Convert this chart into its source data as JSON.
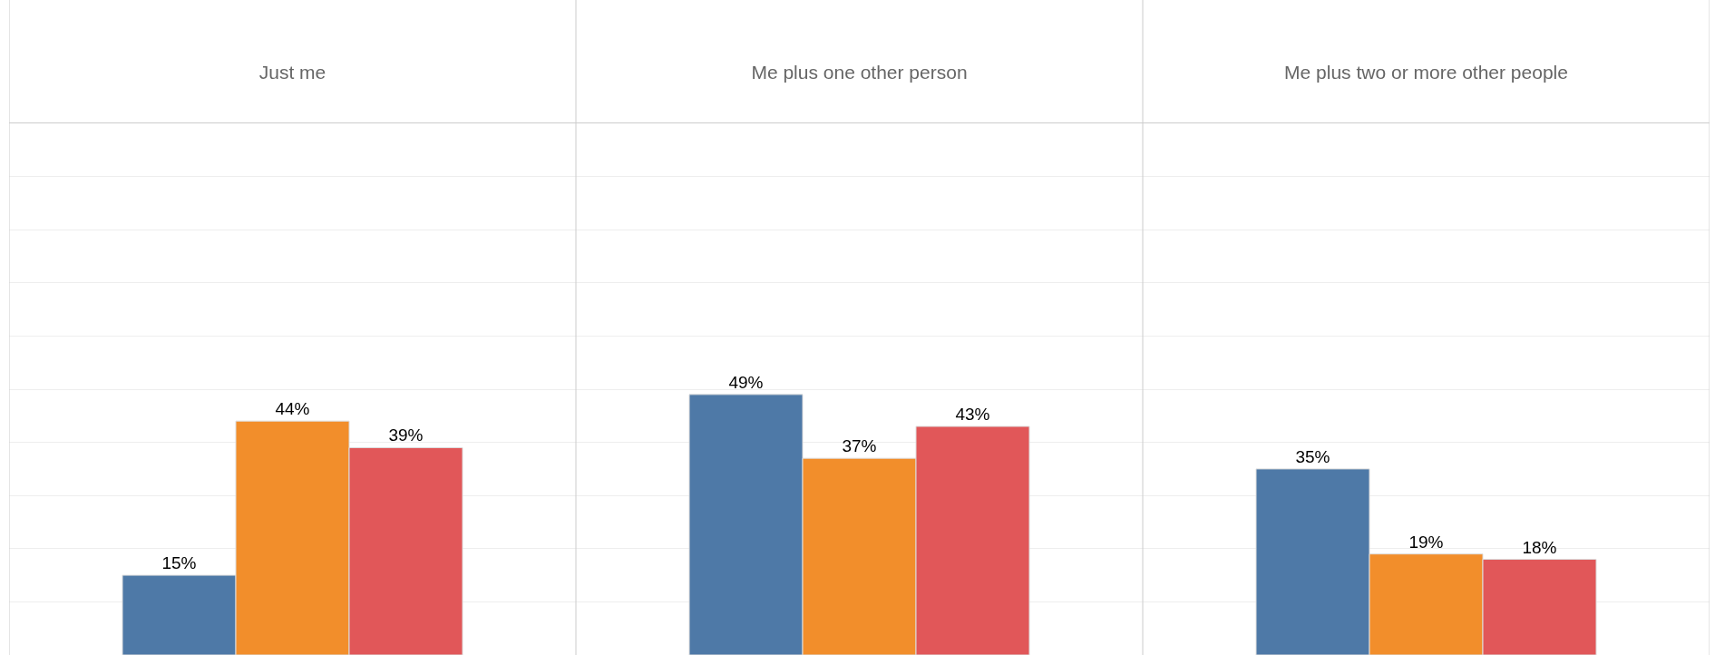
{
  "chart_data": {
    "type": "bar",
    "categories": [
      "Just me",
      "Me plus one other person",
      "Me plus two or more other people"
    ],
    "series": [
      {
        "color": "#4e79a7",
        "values": [
          15,
          49,
          35
        ],
        "value_labels": [
          "15%",
          "49%",
          "35%"
        ]
      },
      {
        "color": "#f28e2b",
        "values": [
          44,
          37,
          19
        ],
        "value_labels": [
          "44%",
          "37%",
          "19%"
        ]
      },
      {
        "color": "#e15759",
        "values": [
          39,
          43,
          18
        ],
        "value_labels": [
          "39%",
          "43%",
          "18%"
        ]
      }
    ],
    "ylim": [
      0,
      100
    ],
    "yticks": [
      {
        "value": 0,
        "label": null
      },
      {
        "value": 10,
        "label": null
      },
      {
        "value": 20,
        "label": null
      },
      {
        "value": 30,
        "label": null
      },
      {
        "value": 40,
        "label": null
      },
      {
        "value": 50,
        "label": null
      },
      {
        "value": 60,
        "label": null
      },
      {
        "value": 70,
        "label": null
      },
      {
        "value": 80,
        "label": null
      },
      {
        "value": 90,
        "label": null
      },
      {
        "value": 100,
        "label": null
      }
    ],
    "grid": "y",
    "tick_labels": "x"
  }
}
